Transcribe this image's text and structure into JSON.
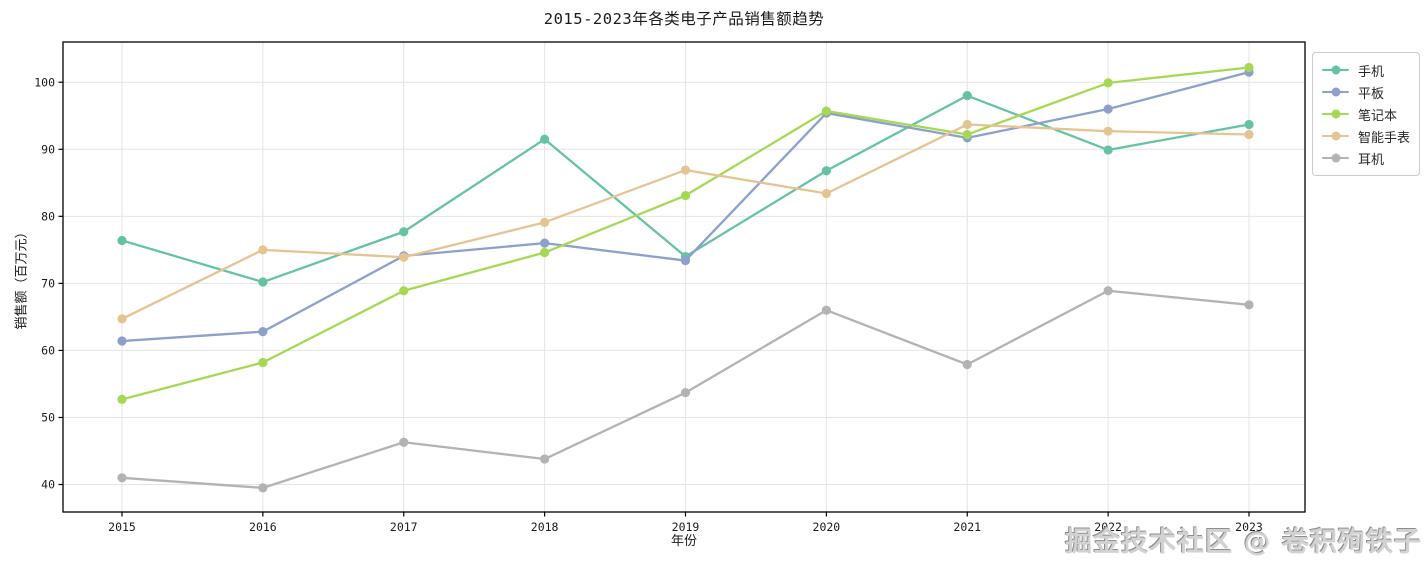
{
  "figure": {
    "title": "2015-2023年各类电子产品销售额趋势",
    "xlabel": "年份",
    "ylabel": "销售额（百万元）",
    "watermark": "掘金技术社区 @ 卷积殉铁子"
  },
  "colors": {
    "background": "#ffffff",
    "grid": "#e4e4e4",
    "axis": "#000000",
    "tick_label": "#1a1a1a",
    "legend_border": "#cccccc",
    "watermark": "#d2d2d2"
  },
  "chart_data": {
    "type": "line",
    "title": "2015-2023年各类电子产品销售额趋势",
    "xlabel": "年份",
    "ylabel": "销售额（百万元）",
    "categories": [
      "2015",
      "2016",
      "2017",
      "2018",
      "2019",
      "2020",
      "2021",
      "2022",
      "2023"
    ],
    "yticks": [
      40,
      50,
      60,
      70,
      80,
      90,
      100
    ],
    "ylim": [
      35.9,
      106.0
    ],
    "grid": true,
    "legend_position": "outside-upper-right",
    "marker": "circle",
    "series": [
      {
        "id": "phone",
        "name": "手机",
        "color": "#66c2a5",
        "values": [
          76.4,
          70.2,
          77.7,
          91.5,
          74.0,
          86.8,
          98.0,
          89.9,
          93.7
        ]
      },
      {
        "id": "tablet",
        "name": "平板",
        "color": "#8da0cb",
        "values": [
          61.4,
          62.8,
          74.1,
          76.0,
          73.4,
          95.4,
          91.7,
          96.0,
          101.5
        ]
      },
      {
        "id": "laptop",
        "name": "笔记本",
        "color": "#a6d854",
        "values": [
          52.7,
          58.2,
          68.9,
          74.6,
          83.1,
          95.7,
          92.2,
          99.9,
          102.2
        ]
      },
      {
        "id": "smartwatch",
        "name": "智能手表",
        "color": "#e5c494",
        "values": [
          64.7,
          75.0,
          73.9,
          79.1,
          86.9,
          83.4,
          93.7,
          92.7,
          92.2
        ]
      },
      {
        "id": "earphones",
        "name": "耳机",
        "color": "#b3b3b3",
        "values": [
          41.0,
          39.5,
          46.3,
          43.8,
          53.7,
          66.0,
          57.9,
          68.9,
          66.8
        ]
      }
    ]
  }
}
